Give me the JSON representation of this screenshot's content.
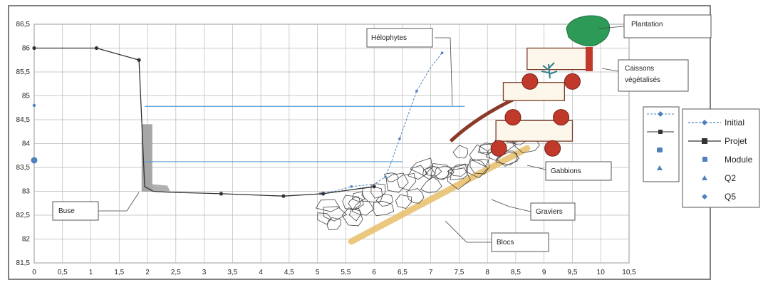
{
  "chart_data": {
    "type": "line",
    "xlim": [
      0,
      10.5
    ],
    "ylim": [
      81.5,
      86.5
    ],
    "x_ticks": [
      {
        "v": 0,
        "label": "0"
      },
      {
        "v": 0.5,
        "label": "0,5"
      },
      {
        "v": 1,
        "label": "1"
      },
      {
        "v": 1.5,
        "label": "1,5"
      },
      {
        "v": 2,
        "label": "2"
      },
      {
        "v": 2.5,
        "label": "2,5"
      },
      {
        "v": 3,
        "label": "3"
      },
      {
        "v": 3.5,
        "label": "3,5"
      },
      {
        "v": 4,
        "label": "4"
      },
      {
        "v": 4.5,
        "label": "4,5"
      },
      {
        "v": 5,
        "label": "5"
      },
      {
        "v": 5.5,
        "label": "5,5"
      },
      {
        "v": 6,
        "label": "6"
      },
      {
        "v": 6.5,
        "label": "6,5"
      },
      {
        "v": 7,
        "label": "7"
      },
      {
        "v": 7.5,
        "label": "7,5"
      },
      {
        "v": 8,
        "label": "8"
      },
      {
        "v": 8.5,
        "label": "8,5"
      },
      {
        "v": 9,
        "label": "9"
      },
      {
        "v": 9.5,
        "label": "9,5"
      },
      {
        "v": 10,
        "label": "10"
      },
      {
        "v": 10.5,
        "label": "10,5"
      }
    ],
    "y_ticks": [
      {
        "v": 81.5,
        "label": "81,5"
      },
      {
        "v": 82,
        "label": "82"
      },
      {
        "v": 82.5,
        "label": "82,5"
      },
      {
        "v": 83,
        "label": "83"
      },
      {
        "v": 83.5,
        "label": "83,5"
      },
      {
        "v": 84,
        "label": "84"
      },
      {
        "v": 84.5,
        "label": "84,5"
      },
      {
        "v": 85,
        "label": "85"
      },
      {
        "v": 85.5,
        "label": "85,5"
      },
      {
        "v": 86,
        "label": "86"
      },
      {
        "v": 86.5,
        "label": "86,5"
      }
    ],
    "series": [
      {
        "name": "Initial",
        "color": "#4f81bd",
        "style": "dashed",
        "x": [
          5.05,
          5.3,
          5.6,
          6.0,
          6.2,
          6.3,
          6.45,
          6.6,
          6.75,
          7.0,
          7.2
        ],
        "y": [
          82.95,
          83.0,
          83.1,
          83.15,
          83.3,
          83.6,
          84.1,
          84.6,
          85.1,
          85.6,
          85.9
        ]
      },
      {
        "name": "Projet",
        "color": "#333333",
        "style": "solid",
        "x": [
          0,
          1.1,
          1.85,
          1.95,
          2.1,
          2.4,
          3.3,
          4.4,
          5.1,
          6.0
        ],
        "y": [
          86.0,
          86.0,
          85.75,
          83.1,
          83.0,
          82.98,
          82.95,
          82.9,
          82.95,
          83.1
        ]
      },
      {
        "name": "Module",
        "color": "#4f81bd",
        "x": [
          0
        ],
        "y": [
          83.65
        ]
      },
      {
        "name": "Q2",
        "color": "#4f81bd",
        "x": [
          0
        ],
        "y": [
          84.8
        ]
      },
      {
        "name": "Q5",
        "color": "#4f81bd",
        "x": [
          0
        ],
        "y": [
          84.8
        ]
      }
    ],
    "water_lines": [
      {
        "x": [
          1.95,
          7.6
        ],
        "y": [
          84.78,
          84.78
        ],
        "color": "#5b9bd5"
      },
      {
        "x": [
          1.95,
          6.5
        ],
        "y": [
          83.62,
          83.62
        ],
        "color": "#5b9bd5"
      }
    ],
    "annotations": [
      "Plantation",
      "Caissons végétalisés",
      "Hélophytes",
      "Gabbions",
      "Graviers",
      "Blocs",
      "Buse"
    ],
    "legend_position": "right",
    "grid": true
  },
  "legend": [
    {
      "label": "Initial",
      "color": "#4f81bd",
      "marker": "line-diamond"
    },
    {
      "label": "Projet",
      "color": "#333333",
      "marker": "line-square"
    },
    {
      "label": "Module",
      "color": "#4f81bd",
      "marker": "square"
    },
    {
      "label": "Q2",
      "color": "#4f81bd",
      "marker": "triangle"
    },
    {
      "label": "Q5",
      "color": "#4f81bd",
      "marker": "diamond"
    }
  ],
  "callouts": {
    "plantation": "Plantation",
    "caissons_1": "Caissons",
    "caissons_2": "végétalisés",
    "helophytes": "Hélophytes",
    "gabbions": "Gabbions",
    "graviers": "Graviers",
    "blocs": "Blocs",
    "buse": "Buse"
  },
  "colors": {
    "grid": "#b8b8b8",
    "frame": "#555555",
    "wood": "#7a3d2a",
    "round_log": "#c0392b",
    "plant": "#2e9a57",
    "gravel_band": "#e8bf6a",
    "culvert": "#999999"
  }
}
